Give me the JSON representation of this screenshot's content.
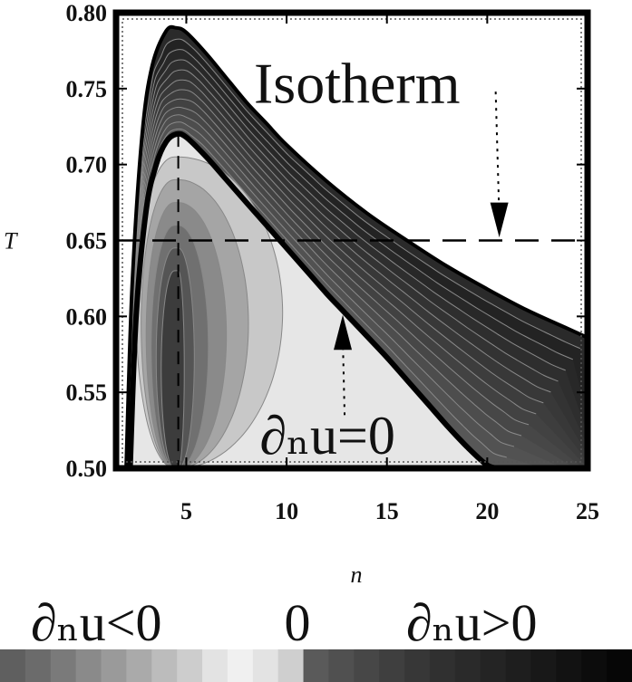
{
  "chart_data": {
    "type": "contour",
    "title": "",
    "xlabel": "n",
    "ylabel": "T",
    "xlim": [
      1.5,
      25
    ],
    "ylim": [
      0.5,
      0.8
    ],
    "x_ticks": [
      5,
      10,
      15,
      20,
      25
    ],
    "y_ticks": [
      "0.50",
      "0.55",
      "0.60",
      "0.65",
      "0.70",
      "0.75",
      "0.80"
    ],
    "grid": false,
    "isotherm_T": 0.65,
    "vertical_line_n": 4.6,
    "boundary_curve_du_zero": {
      "n": [
        2.2,
        2.5,
        3.0,
        3.5,
        4.0,
        4.5,
        5.0,
        6.0,
        7.0,
        8.0,
        9.0,
        10.0,
        11.0,
        12.0,
        13.0,
        14.0,
        15.0,
        16.0,
        17.0,
        18.0,
        19.0,
        20.0,
        20.6
      ],
      "T": [
        0.5,
        0.6,
        0.67,
        0.7,
        0.715,
        0.72,
        0.718,
        0.705,
        0.69,
        0.675,
        0.66,
        0.645,
        0.63,
        0.615,
        0.601,
        0.587,
        0.573,
        0.558,
        0.543,
        0.528,
        0.514,
        0.502,
        0.5
      ]
    },
    "outer_envelope": {
      "n": [
        2.0,
        2.3,
        2.8,
        3.3,
        4.0,
        4.5,
        5.0,
        6.0,
        7.0,
        8.0,
        9.0,
        10.0,
        12.0,
        14.0,
        16.0,
        18.0,
        20.0,
        22.0,
        24.0,
        25.0
      ],
      "T": [
        0.5,
        0.62,
        0.72,
        0.765,
        0.788,
        0.79,
        0.787,
        0.773,
        0.757,
        0.741,
        0.727,
        0.713,
        0.689,
        0.668,
        0.65,
        0.633,
        0.618,
        0.604,
        0.592,
        0.586
      ]
    },
    "annotations": [
      {
        "text": "Isotherm",
        "n": 13.6,
        "T": 0.755
      },
      {
        "text": "∂ₙu=0",
        "n": 12.4,
        "T": 0.524
      }
    ],
    "legend": {
      "left_label": "∂ₙu<0",
      "center_label": "0",
      "right_label": "∂ₙu>0",
      "colors": [
        "#5f5f5f",
        "#6b6b6b",
        "#7a7a7a",
        "#8a8a8a",
        "#9a9a9a",
        "#aaaaaa",
        "#bcbcbc",
        "#cdcdcd",
        "#e3e3e3",
        "#f0f0f0",
        "#e3e3e3",
        "#cfcfcf",
        "#5a5a5a",
        "#505050",
        "#474747",
        "#3f3f3f",
        "#373737",
        "#303030",
        "#2a2a2a",
        "#242424",
        "#1e1e1e",
        "#181818",
        "#121212",
        "#0c0c0c",
        "#060606"
      ]
    }
  }
}
